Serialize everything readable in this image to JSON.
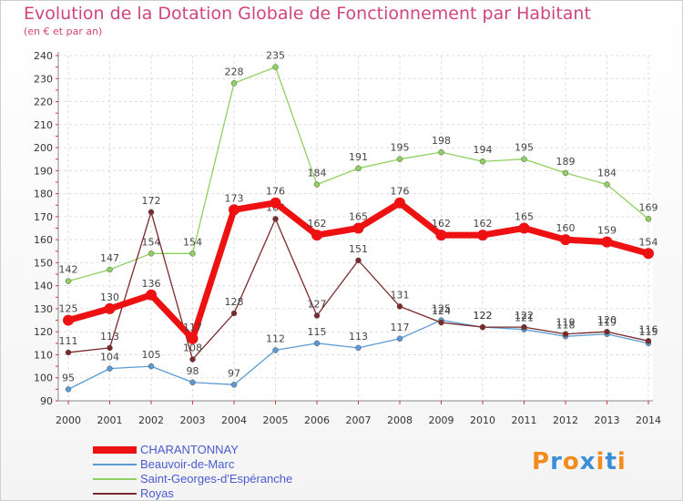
{
  "chart_data": {
    "type": "line",
    "title": "Evolution de la Dotation Globale de Fonctionnement par Habitant",
    "subtitle": "(en € et par an)",
    "xlabel": "",
    "ylabel": "",
    "categories": [
      "2000",
      "2001",
      "2002",
      "2003",
      "2004",
      "2005",
      "2006",
      "2007",
      "2008",
      "2009",
      "2010",
      "2011",
      "2012",
      "2013",
      "2014"
    ],
    "ylim": [
      90,
      240
    ],
    "yticks": [
      90,
      100,
      110,
      120,
      130,
      140,
      150,
      160,
      170,
      180,
      190,
      200,
      210,
      220,
      230,
      240
    ],
    "grid": true,
    "legend_position": "bottom-left",
    "series": [
      {
        "name": "Saint-Georges-d'Espéranche",
        "color": "#8fd160",
        "thin": true,
        "values": [
          142,
          147,
          154,
          154,
          228,
          235,
          184,
          191,
          195,
          198,
          194,
          195,
          189,
          184,
          169
        ]
      },
      {
        "name": "Beauvoir-de-Marc",
        "color": "#5b9bd5",
        "thin": true,
        "values": [
          95,
          104,
          105,
          98,
          97,
          112,
          115,
          113,
          117,
          125,
          122,
          121,
          118,
          119,
          115
        ]
      },
      {
        "name": "Royas",
        "color": "#7a2a2a",
        "thin": true,
        "values": [
          111,
          113,
          172,
          108,
          128,
          169,
          127,
          151,
          131,
          124,
          122,
          122,
          119,
          120,
          116
        ]
      },
      {
        "name": "CHARANTONNAY",
        "color": "#ee1111",
        "thin": false,
        "values": [
          125,
          130,
          136,
          117,
          173,
          176,
          162,
          165,
          176,
          162,
          162,
          165,
          160,
          159,
          154
        ]
      }
    ]
  },
  "logo": {
    "text": "Proxiti",
    "colors": [
      "#f28c1e",
      "#3b8fd6",
      "#f28c1e",
      "#3b8fd6",
      "#f28c1e",
      "#3b8fd6",
      "#f28c1e"
    ]
  }
}
